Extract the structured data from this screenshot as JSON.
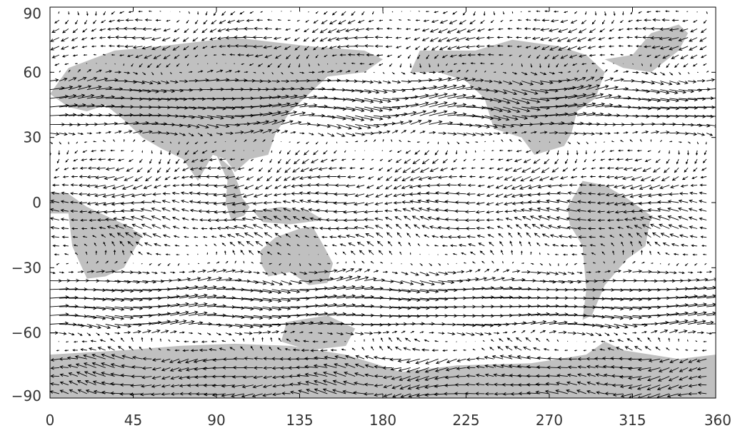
{
  "chart_data": {
    "type": "vector-field",
    "title": "",
    "xlabel": "",
    "ylabel": "",
    "xlim": [
      0,
      360
    ],
    "ylim": [
      -90,
      90
    ],
    "x_ticks": [
      0,
      45,
      90,
      135,
      180,
      225,
      270,
      315,
      360
    ],
    "y_ticks": [
      90,
      60,
      30,
      0,
      -30,
      -60,
      -90
    ],
    "x_tick_labels": [
      "0",
      "45",
      "90",
      "135",
      "180",
      "225",
      "270",
      "315",
      "360"
    ],
    "y_tick_labels": [
      "90",
      "60",
      "30",
      "0",
      "−30",
      "−60",
      "−90"
    ],
    "grid": false,
    "land_color": "#c0c0c0",
    "arrow_color": "#000000",
    "land_regions": [
      {
        "name": "Europe-Asia",
        "lonlat": [
          [
            0,
            50
          ],
          [
            10,
            62
          ],
          [
            35,
            70
          ],
          [
            60,
            72
          ],
          [
            100,
            76
          ],
          [
            140,
            72
          ],
          [
            170,
            70
          ],
          [
            180,
            66
          ],
          [
            170,
            60
          ],
          [
            150,
            58
          ],
          [
            140,
            50
          ],
          [
            130,
            42
          ],
          [
            122,
            32
          ],
          [
            118,
            22
          ],
          [
            108,
            20
          ],
          [
            100,
            14
          ],
          [
            95,
            20
          ],
          [
            88,
            22
          ],
          [
            80,
            10
          ],
          [
            72,
            20
          ],
          [
            60,
            25
          ],
          [
            50,
            30
          ],
          [
            40,
            38
          ],
          [
            30,
            45
          ],
          [
            20,
            42
          ],
          [
            10,
            44
          ]
        ]
      },
      {
        "name": "India-SEAsia",
        "lonlat": [
          [
            90,
            22
          ],
          [
            98,
            16
          ],
          [
            102,
            8
          ],
          [
            104,
            2
          ],
          [
            108,
            -2
          ],
          [
            105,
            -6
          ],
          [
            98,
            -8
          ],
          [
            95,
            0
          ],
          [
            96,
            10
          ],
          [
            92,
            18
          ]
        ]
      },
      {
        "name": "Indonesia",
        "lonlat": [
          [
            110,
            -4
          ],
          [
            125,
            -2
          ],
          [
            140,
            -4
          ],
          [
            148,
            -8
          ],
          [
            130,
            -10
          ],
          [
            115,
            -9
          ]
        ]
      },
      {
        "name": "Africa",
        "lonlat": [
          [
            0,
            5
          ],
          [
            10,
            4
          ],
          [
            20,
            -2
          ],
          [
            40,
            -10
          ],
          [
            50,
            -15
          ],
          [
            40,
            -30
          ],
          [
            30,
            -34
          ],
          [
            20,
            -35
          ],
          [
            12,
            -20
          ],
          [
            10,
            -5
          ],
          [
            0,
            -5
          ]
        ]
      },
      {
        "name": "Australia",
        "lonlat": [
          [
            114,
            -22
          ],
          [
            122,
            -16
          ],
          [
            135,
            -12
          ],
          [
            142,
            -11
          ],
          [
            148,
            -20
          ],
          [
            153,
            -28
          ],
          [
            150,
            -37
          ],
          [
            140,
            -38
          ],
          [
            130,
            -32
          ],
          [
            118,
            -34
          ],
          [
            114,
            -28
          ]
        ]
      },
      {
        "name": "NorthAmerica",
        "lonlat": [
          [
            195,
            60
          ],
          [
            200,
            70
          ],
          [
            230,
            70
          ],
          [
            250,
            75
          ],
          [
            275,
            72
          ],
          [
            290,
            68
          ],
          [
            300,
            60
          ],
          [
            295,
            48
          ],
          [
            285,
            42
          ],
          [
            282,
            32
          ],
          [
            278,
            26
          ],
          [
            262,
            22
          ],
          [
            255,
            30
          ],
          [
            240,
            34
          ],
          [
            235,
            48
          ],
          [
            225,
            56
          ],
          [
            210,
            60
          ]
        ]
      },
      {
        "name": "Greenland",
        "lonlat": [
          [
            300,
            66
          ],
          [
            315,
            68
          ],
          [
            325,
            78
          ],
          [
            340,
            82
          ],
          [
            345,
            78
          ],
          [
            340,
            70
          ],
          [
            325,
            60
          ],
          [
            310,
            62
          ]
        ]
      },
      {
        "name": "SouthAmerica",
        "lonlat": [
          [
            280,
            -2
          ],
          [
            288,
            10
          ],
          [
            300,
            8
          ],
          [
            312,
            2
          ],
          [
            325,
            -6
          ],
          [
            322,
            -20
          ],
          [
            312,
            -26
          ],
          [
            300,
            -38
          ],
          [
            293,
            -52
          ],
          [
            288,
            -54
          ],
          [
            290,
            -40
          ],
          [
            288,
            -20
          ],
          [
            281,
            -10
          ]
        ]
      },
      {
        "name": "Antarctica",
        "lonlat": [
          [
            0,
            -70
          ],
          [
            40,
            -68
          ],
          [
            70,
            -66
          ],
          [
            100,
            -65
          ],
          [
            130,
            -66
          ],
          [
            160,
            -70
          ],
          [
            190,
            -78
          ],
          [
            220,
            -75
          ],
          [
            260,
            -74
          ],
          [
            290,
            -70
          ],
          [
            300,
            -64
          ],
          [
            310,
            -68
          ],
          [
            340,
            -72
          ],
          [
            360,
            -70
          ],
          [
            360,
            -90
          ],
          [
            0,
            -90
          ]
        ]
      },
      {
        "name": "SouthernPatch",
        "lonlat": [
          [
            128,
            -55
          ],
          [
            150,
            -52
          ],
          [
            165,
            -58
          ],
          [
            160,
            -66
          ],
          [
            140,
            -68
          ],
          [
            125,
            -64
          ]
        ]
      }
    ],
    "vector_grid": {
      "dlon": 5,
      "dlat": 4,
      "field": "generated-wind"
    }
  }
}
